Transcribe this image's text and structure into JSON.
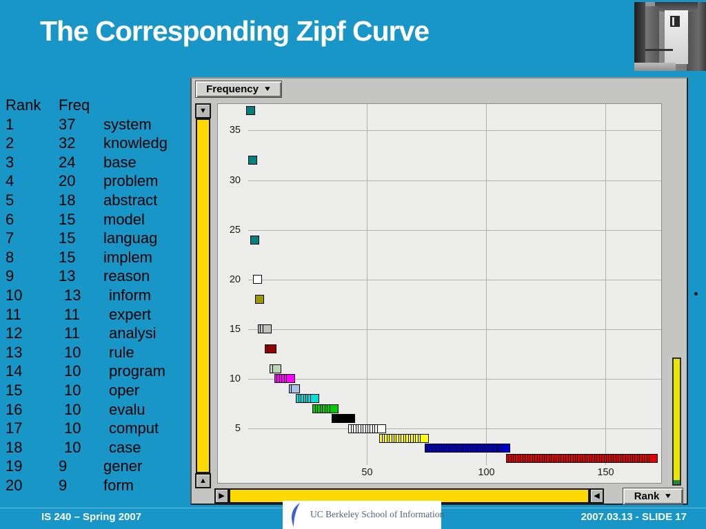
{
  "slide": {
    "title": "The Corresponding Zipf Curve",
    "colors": {
      "header_teal": "#1896C8",
      "scrollbar_yellow": "#FFD900",
      "slider_green": "#1F8A3C",
      "plot_background": "#EDEDEC",
      "window_gray": "#C5C6C3"
    }
  },
  "icons": {
    "dropdown": "▼",
    "scroll_up": "▲",
    "scroll_down": "▼",
    "scroll_right": "▶",
    "scroll_left": "◀"
  },
  "word_list": {
    "header": {
      "rank": "Rank",
      "freq": "Freq"
    },
    "rows": [
      {
        "rank": "1",
        "freq": "37",
        "word": "system",
        "indent": false
      },
      {
        "rank": "2",
        "freq": "32",
        "word": "knowledg",
        "indent": false
      },
      {
        "rank": "3",
        "freq": "24",
        "word": "base",
        "indent": false
      },
      {
        "rank": "4",
        "freq": "20",
        "word": "problem",
        "indent": false
      },
      {
        "rank": "5",
        "freq": "18",
        "word": "abstract",
        "indent": false
      },
      {
        "rank": "6",
        "freq": "15",
        "word": "model",
        "indent": false
      },
      {
        "rank": "7",
        "freq": "15",
        "word": "languag",
        "indent": false
      },
      {
        "rank": "8",
        "freq": "15",
        "word": "implem",
        "indent": false
      },
      {
        "rank": "9",
        "freq": "13",
        "word": "reason",
        "indent": false
      },
      {
        "rank": "10",
        "freq": "13",
        "word": "inform",
        "indent": true
      },
      {
        "rank": "11",
        "freq": "11",
        "word": "expert",
        "indent": true
      },
      {
        "rank": "12",
        "freq": "11",
        "word": "analysi",
        "indent": true
      },
      {
        "rank": "13",
        "freq": "10",
        "word": "rule",
        "indent": true
      },
      {
        "rank": "14",
        "freq": "10",
        "word": "program",
        "indent": true
      },
      {
        "rank": "15",
        "freq": "10",
        "word": "oper",
        "indent": true
      },
      {
        "rank": "16",
        "freq": "10",
        "word": "evalu",
        "indent": true
      },
      {
        "rank": "17",
        "freq": "10",
        "word": "comput",
        "indent": true
      },
      {
        "rank": "18",
        "freq": "10",
        "word": "case",
        "indent": true
      },
      {
        "rank": "19",
        "freq": "9",
        "word": "gener",
        "indent": false
      },
      {
        "rank": "20",
        "freq": "9",
        "word": "form",
        "indent": false
      }
    ]
  },
  "chart_window": {
    "y_axis_button_label": "Frequency",
    "x_axis_button_label": "Rank"
  },
  "chart_data": {
    "type": "scatter",
    "title": "Zipf curve: term frequency vs. rank",
    "xlabel": "Rank",
    "ylabel": "Frequency",
    "xlim": [
      0,
      174
    ],
    "ylim": [
      0,
      38
    ],
    "x_ticks": [
      50,
      100,
      150
    ],
    "y_ticks": [
      35,
      30,
      25,
      20,
      15,
      10,
      5
    ],
    "grid": true,
    "marker": "square",
    "groups": [
      {
        "freq": 37,
        "rank_start": 1,
        "rank_end": 1,
        "color": "#008080"
      },
      {
        "freq": 32,
        "rank_start": 2,
        "rank_end": 2,
        "color": "#008080"
      },
      {
        "freq": 24,
        "rank_start": 3,
        "rank_end": 3,
        "color": "#008080"
      },
      {
        "freq": 20,
        "rank_start": 4,
        "rank_end": 4,
        "color": "#ffffff"
      },
      {
        "freq": 18,
        "rank_start": 5,
        "rank_end": 5,
        "color": "#9a9a00"
      },
      {
        "freq": 15,
        "rank_start": 6,
        "rank_end": 8,
        "color": "#c0c0c0"
      },
      {
        "freq": 13,
        "rank_start": 9,
        "rank_end": 10,
        "color": "#990000"
      },
      {
        "freq": 11,
        "rank_start": 11,
        "rank_end": 12,
        "color": "#b8d8b8"
      },
      {
        "freq": 10,
        "rank_start": 13,
        "rank_end": 18,
        "color": "#ff00ff"
      },
      {
        "freq": 9,
        "rank_start": 19,
        "rank_end": 20,
        "color": "#a8c4e4"
      },
      {
        "freq": 8,
        "rank_start": 22,
        "rank_end": 28,
        "color": "#00dede"
      },
      {
        "freq": 7,
        "rank_start": 29,
        "rank_end": 36,
        "color": "#00cc00"
      },
      {
        "freq": 6,
        "rank_start": 37,
        "rank_end": 43,
        "color": "#000000"
      },
      {
        "freq": 5,
        "rank_start": 44,
        "rank_end": 56,
        "color": "#ffffff"
      },
      {
        "freq": 4,
        "rank_start": 57,
        "rank_end": 74,
        "color": "#ffff00"
      },
      {
        "freq": 3,
        "rank_start": 76,
        "rank_end": 108,
        "color": "#0000cc"
      },
      {
        "freq": 2,
        "rank_start": 110,
        "rank_end": 170,
        "color": "#e00000"
      }
    ]
  },
  "footer": {
    "left": "IS 240 – Spring 2007",
    "logo_text": "UC Berkeley School of Information",
    "right": "2007.03.13 - SLIDE 17"
  }
}
